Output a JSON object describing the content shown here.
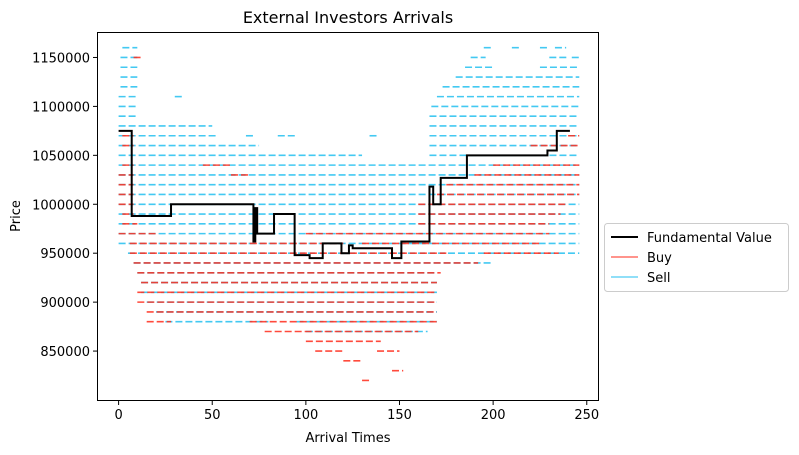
{
  "chart_data": {
    "type": "line",
    "title": "External Investors Arrivals",
    "xlabel": "Arrival Times",
    "ylabel": "Price",
    "xlim": [
      -11,
      256
    ],
    "ylim": [
      800000,
      1175000
    ],
    "xticks": [
      0,
      50,
      100,
      150,
      200,
      250
    ],
    "xtick_labels": [
      "0",
      "50",
      "100",
      "150",
      "200",
      "250"
    ],
    "yticks": [
      850000,
      900000,
      950000,
      1000000,
      1050000,
      1100000,
      1150000
    ],
    "ytick_labels": [
      "850000",
      "900000",
      "950000",
      "1000000",
      "1050000",
      "1100000",
      "1150000"
    ],
    "legend": {
      "placement": "outside-right",
      "entries": [
        "Fundamental Value",
        "Buy",
        "Sell"
      ]
    },
    "colors": {
      "fundamental": "#000000",
      "buy": "#ff2a1a",
      "sell": "#22bff0",
      "overlap": "#7a7fb8"
    },
    "series": [
      {
        "name": "Fundamental Value",
        "kind": "step",
        "points": [
          [
            0,
            1075000
          ],
          [
            7,
            1075000
          ],
          [
            7,
            988000
          ],
          [
            28,
            988000
          ],
          [
            28,
            1000000
          ],
          [
            72,
            1000000
          ],
          [
            72,
            962000
          ],
          [
            73,
            962000
          ],
          [
            73,
            996000
          ],
          [
            74,
            996000
          ],
          [
            74,
            970000
          ],
          [
            83,
            970000
          ],
          [
            83,
            990000
          ],
          [
            94,
            990000
          ],
          [
            94,
            948000
          ],
          [
            102,
            948000
          ],
          [
            102,
            945000
          ],
          [
            109,
            945000
          ],
          [
            109,
            960000
          ],
          [
            119,
            960000
          ],
          [
            119,
            950000
          ],
          [
            123,
            950000
          ],
          [
            123,
            958000
          ],
          [
            125,
            958000
          ],
          [
            125,
            955000
          ],
          [
            146,
            955000
          ],
          [
            146,
            945000
          ],
          [
            151,
            945000
          ],
          [
            151,
            962000
          ],
          [
            166,
            962000
          ],
          [
            166,
            1018000
          ],
          [
            168,
            1018000
          ],
          [
            168,
            1000000
          ],
          [
            172,
            1000000
          ],
          [
            172,
            1027000
          ],
          [
            186,
            1027000
          ],
          [
            186,
            1050000
          ],
          [
            229,
            1050000
          ],
          [
            229,
            1055000
          ],
          [
            234,
            1055000
          ],
          [
            234,
            1075000
          ],
          [
            241,
            1075000
          ]
        ]
      },
      {
        "name": "Sell",
        "kind": "dash-bands",
        "bands": [
          {
            "price": 1160000,
            "ranges": [
              [
                2,
                10
              ],
              [
                195,
                200
              ],
              [
                210,
                215
              ],
              [
                225,
                230
              ],
              [
                233,
                239
              ]
            ]
          },
          {
            "price": 1150000,
            "ranges": [
              [
                1,
                10
              ],
              [
                188,
                196
              ],
              [
                230,
                240
              ],
              [
                242,
                246
              ]
            ]
          },
          {
            "price": 1140000,
            "ranges": [
              [
                1,
                10
              ],
              [
                185,
                200
              ],
              [
                225,
                245
              ]
            ]
          },
          {
            "price": 1130000,
            "ranges": [
              [
                1,
                10
              ],
              [
                180,
                246
              ]
            ]
          },
          {
            "price": 1120000,
            "ranges": [
              [
                1,
                10
              ],
              [
                173,
                246
              ]
            ]
          },
          {
            "price": 1110000,
            "ranges": [
              [
                0,
                10
              ],
              [
                30,
                34
              ],
              [
                170,
                246
              ]
            ]
          },
          {
            "price": 1100000,
            "ranges": [
              [
                0,
                10
              ],
              [
                167,
                246
              ]
            ]
          },
          {
            "price": 1090000,
            "ranges": [
              [
                0,
                10
              ],
              [
                166,
                246
              ]
            ]
          },
          {
            "price": 1080000,
            "ranges": [
              [
                0,
                50
              ],
              [
                166,
                246
              ]
            ]
          },
          {
            "price": 1070000,
            "ranges": [
              [
                0,
                53
              ],
              [
                68,
                73
              ],
              [
                85,
                95
              ],
              [
                134,
                138
              ],
              [
                166,
                246
              ]
            ]
          },
          {
            "price": 1060000,
            "ranges": [
              [
                0,
                75
              ],
              [
                166,
                246
              ]
            ]
          },
          {
            "price": 1050000,
            "ranges": [
              [
                0,
                130
              ],
              [
                166,
                246
              ]
            ]
          },
          {
            "price": 1040000,
            "ranges": [
              [
                0,
                246
              ]
            ]
          },
          {
            "price": 1030000,
            "ranges": [
              [
                0,
                246
              ]
            ]
          },
          {
            "price": 1020000,
            "ranges": [
              [
                0,
                246
              ]
            ]
          },
          {
            "price": 1010000,
            "ranges": [
              [
                0,
                246
              ]
            ]
          },
          {
            "price": 1000000,
            "ranges": [
              [
                0,
                246
              ]
            ]
          },
          {
            "price": 990000,
            "ranges": [
              [
                0,
                246
              ]
            ]
          },
          {
            "price": 980000,
            "ranges": [
              [
                0,
                246
              ]
            ]
          },
          {
            "price": 970000,
            "ranges": [
              [
                0,
                246
              ]
            ]
          },
          {
            "price": 960000,
            "ranges": [
              [
                0,
                246
              ]
            ]
          },
          {
            "price": 950000,
            "ranges": [
              [
                5,
                246
              ]
            ]
          },
          {
            "price": 940000,
            "ranges": [
              [
                8,
                200
              ]
            ]
          },
          {
            "price": 930000,
            "ranges": [
              [
                10,
                170
              ]
            ]
          },
          {
            "price": 920000,
            "ranges": [
              [
                12,
                170
              ]
            ]
          },
          {
            "price": 910000,
            "ranges": [
              [
                12,
                170
              ]
            ]
          },
          {
            "price": 900000,
            "ranges": [
              [
                15,
                170
              ]
            ]
          },
          {
            "price": 890000,
            "ranges": [
              [
                20,
                170
              ]
            ]
          },
          {
            "price": 880000,
            "ranges": [
              [
                25,
                80
              ],
              [
                95,
                170
              ]
            ]
          },
          {
            "price": 870000,
            "ranges": [
              [
                100,
                165
              ]
            ]
          }
        ]
      },
      {
        "name": "Buy",
        "kind": "dash-bands",
        "bands": [
          {
            "price": 1150000,
            "ranges": [
              [
                8,
                12
              ]
            ]
          },
          {
            "price": 1070000,
            "ranges": [
              [
                2,
                8
              ],
              [
                240,
                246
              ]
            ]
          },
          {
            "price": 1060000,
            "ranges": [
              [
                2,
                8
              ],
              [
                220,
                246
              ]
            ]
          },
          {
            "price": 1040000,
            "ranges": [
              [
                2,
                8
              ],
              [
                45,
                60
              ],
              [
                200,
                246
              ]
            ]
          },
          {
            "price": 1030000,
            "ranges": [
              [
                0,
                8
              ],
              [
                60,
                70
              ],
              [
                190,
                246
              ]
            ]
          },
          {
            "price": 1020000,
            "ranges": [
              [
                0,
                8
              ],
              [
                175,
                246
              ]
            ]
          },
          {
            "price": 1010000,
            "ranges": [
              [
                0,
                8
              ],
              [
                170,
                246
              ]
            ]
          },
          {
            "price": 1000000,
            "ranges": [
              [
                0,
                8
              ],
              [
                160,
                240
              ]
            ]
          },
          {
            "price": 990000,
            "ranges": [
              [
                2,
                8
              ],
              [
                160,
                236
              ]
            ]
          },
          {
            "price": 980000,
            "ranges": [
              [
                2,
                10
              ],
              [
                160,
                230
              ]
            ]
          },
          {
            "price": 970000,
            "ranges": [
              [
                0,
                20
              ],
              [
                100,
                230
              ]
            ]
          },
          {
            "price": 960000,
            "ranges": [
              [
                6,
                120
              ],
              [
                130,
                226
              ]
            ]
          },
          {
            "price": 950000,
            "ranges": [
              [
                6,
                175
              ],
              [
                195,
                235
              ]
            ]
          },
          {
            "price": 940000,
            "ranges": [
              [
                8,
                192
              ]
            ]
          },
          {
            "price": 930000,
            "ranges": [
              [
                10,
                172
              ]
            ]
          },
          {
            "price": 920000,
            "ranges": [
              [
                12,
                170
              ]
            ]
          },
          {
            "price": 910000,
            "ranges": [
              [
                10,
                170
              ]
            ]
          },
          {
            "price": 900000,
            "ranges": [
              [
                10,
                170
              ]
            ]
          },
          {
            "price": 890000,
            "ranges": [
              [
                15,
                170
              ]
            ]
          },
          {
            "price": 880000,
            "ranges": [
              [
                15,
                28
              ],
              [
                70,
                170
              ]
            ]
          },
          {
            "price": 870000,
            "ranges": [
              [
                78,
                160
              ]
            ]
          },
          {
            "price": 860000,
            "ranges": [
              [
                100,
                140
              ]
            ]
          },
          {
            "price": 850000,
            "ranges": [
              [
                105,
                120
              ],
              [
                138,
                150
              ]
            ]
          },
          {
            "price": 840000,
            "ranges": [
              [
                120,
                130
              ]
            ]
          },
          {
            "price": 830000,
            "ranges": [
              [
                146,
                152
              ]
            ]
          },
          {
            "price": 820000,
            "ranges": [
              [
                130,
                135
              ]
            ]
          }
        ]
      }
    ]
  }
}
